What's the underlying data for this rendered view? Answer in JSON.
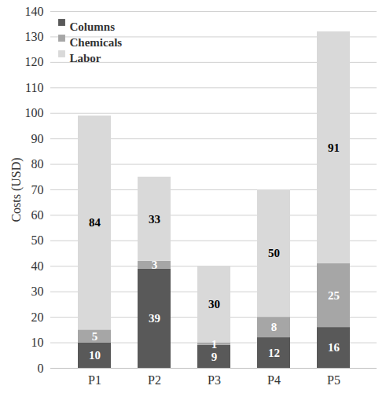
{
  "chart_data": {
    "type": "bar",
    "stacked": true,
    "data_labels": true,
    "grid": true,
    "legend": "top-left",
    "y_label": "Costs (USD)",
    "categories": [
      "P1",
      "P2",
      "P3",
      "P4",
      "P5"
    ],
    "series": [
      {
        "name": "Columns",
        "color": "#595959",
        "values": [
          10,
          39,
          9,
          12,
          16
        ]
      },
      {
        "name": "Chemicals",
        "color": "#a6a6a6",
        "values": [
          5,
          3,
          1,
          8,
          25
        ]
      },
      {
        "name": "Labor",
        "color": "#d9d9d9",
        "values": [
          84,
          33,
          30,
          50,
          91
        ]
      }
    ],
    "ylim": [
      0,
      140
    ],
    "yticks": [
      0,
      10,
      20,
      30,
      40,
      50,
      60,
      70,
      80,
      90,
      100,
      110,
      120,
      130,
      140
    ]
  }
}
